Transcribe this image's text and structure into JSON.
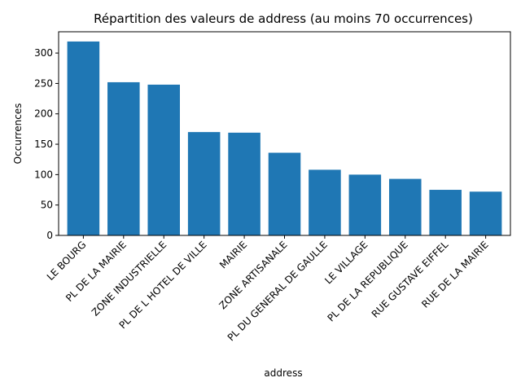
{
  "chart_data": {
    "type": "bar",
    "title": "Répartition des valeurs de address (au moins 70 occurrences)",
    "xlabel": "address",
    "ylabel": "Occurrences",
    "categories": [
      "LE BOURG",
      "PL DE LA MAIRIE",
      "ZONE INDUSTRIELLE",
      "PL DE L HOTEL DE VILLE",
      "MAIRIE",
      "ZONE ARTISANALE",
      "PL DU GENERAL DE GAULLE",
      "LE VILLAGE",
      "PL DE LA REPUBLIQUE",
      "RUE GUSTAVE EIFFEL",
      "RUE DE LA MAIRIE"
    ],
    "values": [
      319,
      252,
      248,
      170,
      169,
      136,
      108,
      100,
      93,
      75,
      72
    ],
    "ylim": [
      0,
      335
    ],
    "yticks": [
      0,
      50,
      100,
      150,
      200,
      250,
      300
    ],
    "bar_color": "#1f77b4",
    "grid": false,
    "legend": "none"
  }
}
